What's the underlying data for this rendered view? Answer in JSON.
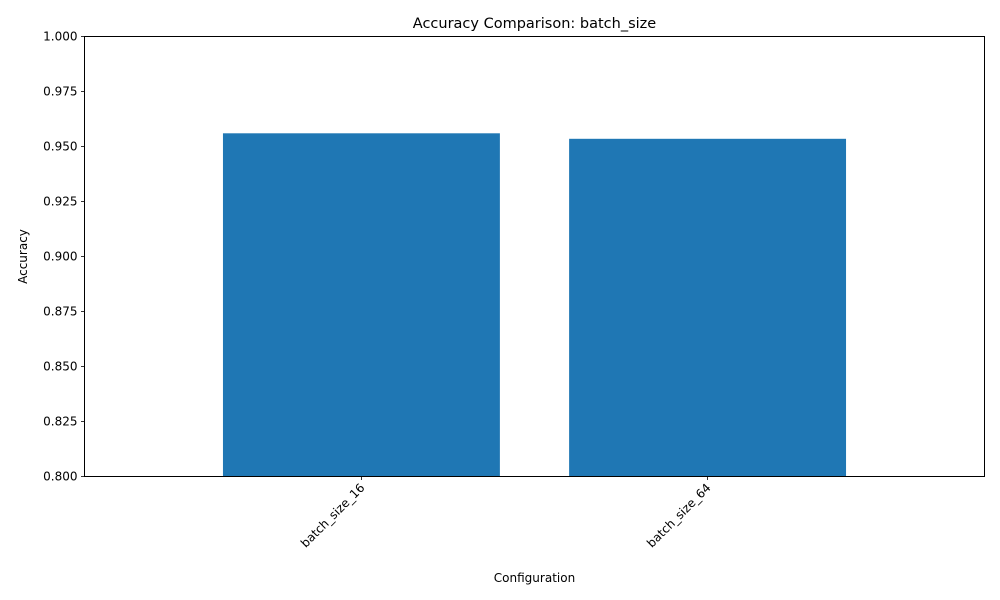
{
  "chart_data": {
    "type": "bar",
    "title": "Accuracy Comparison: batch_size",
    "xlabel": "Configuration",
    "ylabel": "Accuracy",
    "categories": [
      "batch_size_16",
      "batch_size_64"
    ],
    "values": [
      0.956,
      0.9535
    ],
    "ylim": [
      0.8,
      1.0
    ],
    "yticks": [
      "0.800",
      "0.825",
      "0.850",
      "0.875",
      "0.900",
      "0.925",
      "0.950",
      "0.975",
      "1.000"
    ],
    "bar_color": "#1f77b4",
    "grid": false,
    "legend": "none"
  }
}
